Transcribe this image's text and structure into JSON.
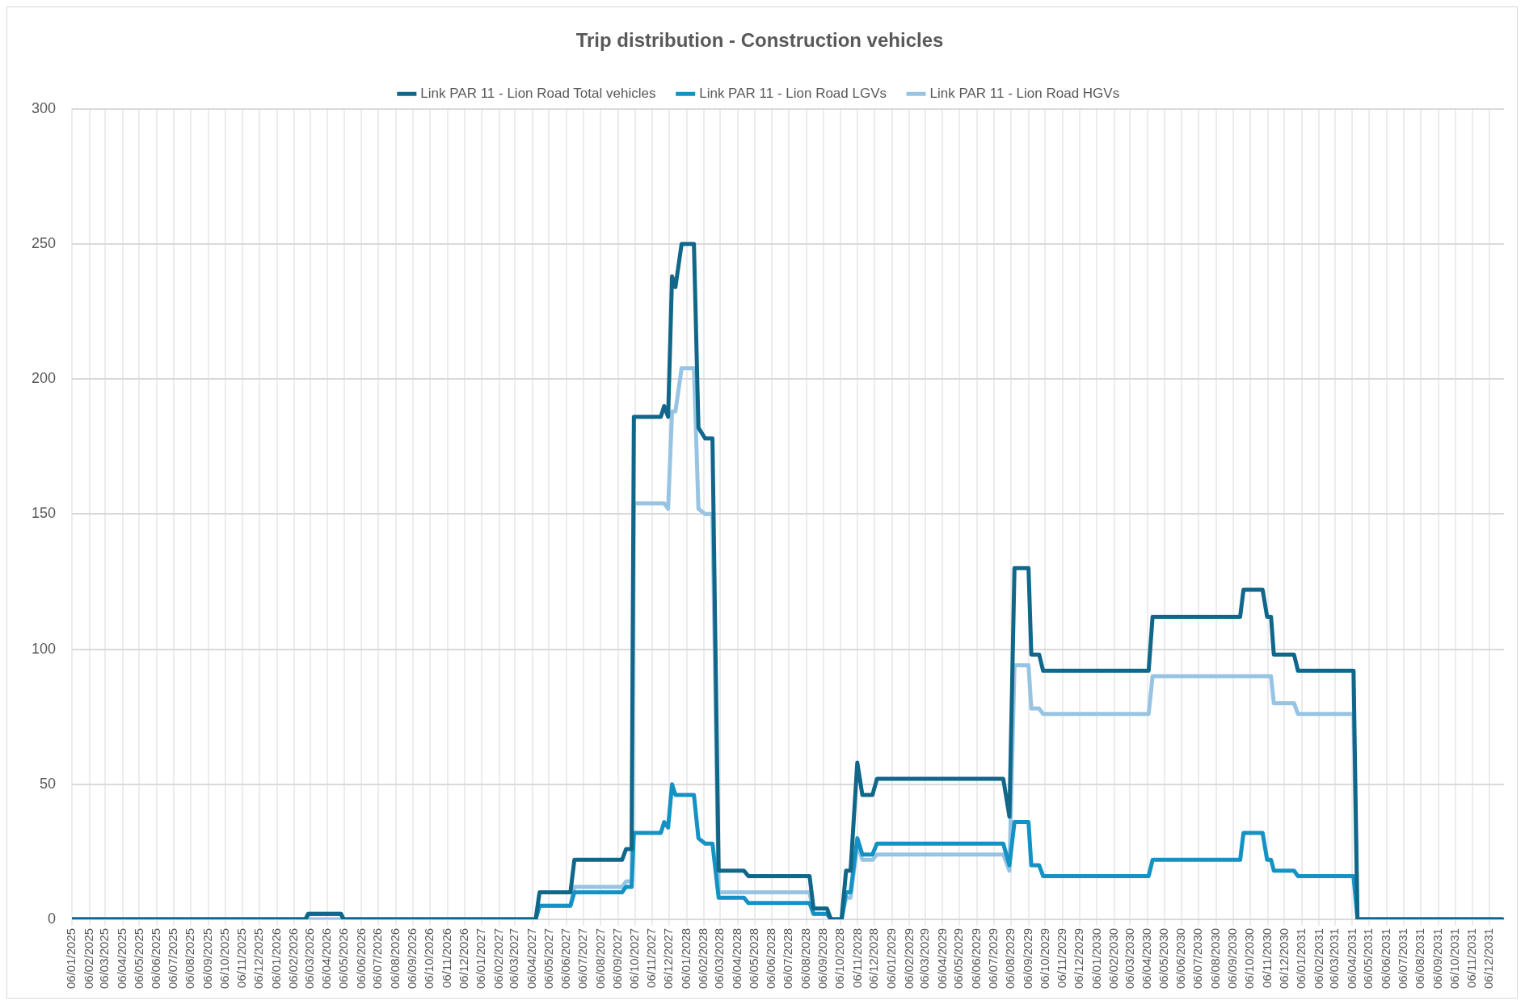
{
  "chart_data": {
    "type": "line",
    "title": "Trip distribution - Construction vehicles",
    "x": [
      "2025-01-06",
      "2026-02-26",
      "2026-03-03",
      "2026-04-30",
      "2026-05-05",
      "2027-04-12",
      "2027-04-19",
      "2027-06-13",
      "2027-06-20",
      "2027-09-13",
      "2027-09-20",
      "2027-09-30",
      "2027-10-04",
      "2027-11-21",
      "2027-11-27",
      "2027-12-04",
      "2027-12-11",
      "2027-12-17",
      "2027-12-28",
      "2028-01-19",
      "2028-01-27",
      "2028-02-08",
      "2028-02-21",
      "2028-03-03",
      "2028-04-17",
      "2028-04-25",
      "2028-08-12",
      "2028-08-19",
      "2028-09-12",
      "2028-09-19",
      "2028-10-08",
      "2028-10-16",
      "2028-10-24",
      "2028-11-05",
      "2028-11-14",
      "2028-12-02",
      "2028-12-10",
      "2029-07-23",
      "2029-08-03",
      "2029-08-12",
      "2029-09-06",
      "2029-09-11",
      "2029-09-25",
      "2029-10-02",
      "2030-04-08",
      "2030-04-15",
      "2030-09-18",
      "2030-09-24",
      "2030-10-28",
      "2030-11-05",
      "2030-11-12",
      "2030-11-17",
      "2030-12-23",
      "2030-12-30",
      "2031-04-08",
      "2031-04-15",
      "2031-12-29"
    ],
    "series": [
      {
        "name": "Link PAR 11 - Lion Road Total vehicles",
        "color": "#10678a",
        "values": [
          0,
          0,
          2,
          2,
          0,
          0,
          10,
          10,
          22,
          22,
          26,
          26,
          186,
          186,
          190,
          186,
          238,
          234,
          250,
          250,
          182,
          178,
          178,
          18,
          18,
          16,
          16,
          4,
          4,
          0,
          0,
          18,
          18,
          58,
          46,
          46,
          52,
          52,
          38,
          130,
          130,
          98,
          98,
          92,
          92,
          112,
          112,
          122,
          122,
          112,
          112,
          98,
          98,
          92,
          92,
          0,
          0
        ]
      },
      {
        "name": "Link PAR 11 - Lion Road LGVs",
        "color": "#1592c4",
        "values": [
          0,
          0,
          2,
          2,
          0,
          0,
          5,
          5,
          10,
          10,
          12,
          12,
          32,
          32,
          36,
          34,
          50,
          46,
          46,
          46,
          30,
          28,
          28,
          8,
          8,
          6,
          6,
          2,
          2,
          0,
          0,
          10,
          10,
          30,
          24,
          24,
          28,
          28,
          20,
          36,
          36,
          20,
          20,
          16,
          16,
          22,
          22,
          32,
          32,
          22,
          22,
          18,
          18,
          16,
          16,
          0,
          0
        ]
      },
      {
        "name": "Link PAR 11 - Lion Road HGVs",
        "color": "#98c4e4",
        "values": [
          0,
          0,
          0,
          0,
          0,
          0,
          5,
          5,
          12,
          12,
          14,
          14,
          154,
          154,
          154,
          152,
          188,
          188,
          204,
          204,
          152,
          150,
          150,
          10,
          10,
          10,
          10,
          2,
          2,
          0,
          0,
          8,
          8,
          28,
          22,
          22,
          24,
          24,
          18,
          94,
          94,
          78,
          78,
          76,
          76,
          90,
          90,
          90,
          90,
          90,
          90,
          80,
          80,
          76,
          76,
          0,
          0
        ]
      }
    ],
    "xlim": [
      "2025-01-06",
      "2032-01-01"
    ],
    "xticks": [
      {
        "value": "2025-01-06",
        "label": "06/01/2025"
      },
      {
        "value": "2025-02-06",
        "label": "06/02/2025"
      },
      {
        "value": "2025-03-06",
        "label": "06/03/2025"
      },
      {
        "value": "2025-04-06",
        "label": "06/04/2025"
      },
      {
        "value": "2025-05-06",
        "label": "06/05/2025"
      },
      {
        "value": "2025-06-06",
        "label": "06/06/2025"
      },
      {
        "value": "2025-07-06",
        "label": "06/07/2025"
      },
      {
        "value": "2025-08-06",
        "label": "06/08/2025"
      },
      {
        "value": "2025-09-06",
        "label": "06/09/2025"
      },
      {
        "value": "2025-10-06",
        "label": "06/10/2025"
      },
      {
        "value": "2025-11-06",
        "label": "06/11/2025"
      },
      {
        "value": "2025-12-06",
        "label": "06/12/2025"
      },
      {
        "value": "2026-01-06",
        "label": "06/01/2026"
      },
      {
        "value": "2026-02-06",
        "label": "06/02/2026"
      },
      {
        "value": "2026-03-06",
        "label": "06/03/2026"
      },
      {
        "value": "2026-04-06",
        "label": "06/04/2026"
      },
      {
        "value": "2026-05-06",
        "label": "06/05/2026"
      },
      {
        "value": "2026-06-06",
        "label": "06/06/2026"
      },
      {
        "value": "2026-07-06",
        "label": "06/07/2026"
      },
      {
        "value": "2026-08-06",
        "label": "06/08/2026"
      },
      {
        "value": "2026-09-06",
        "label": "06/09/2026"
      },
      {
        "value": "2026-10-06",
        "label": "06/10/2026"
      },
      {
        "value": "2026-11-06",
        "label": "06/11/2026"
      },
      {
        "value": "2026-12-06",
        "label": "06/12/2026"
      },
      {
        "value": "2027-01-06",
        "label": "06/01/2027"
      },
      {
        "value": "2027-02-06",
        "label": "06/02/2027"
      },
      {
        "value": "2027-03-06",
        "label": "06/03/2027"
      },
      {
        "value": "2027-04-06",
        "label": "06/04/2027"
      },
      {
        "value": "2027-05-06",
        "label": "06/05/2027"
      },
      {
        "value": "2027-06-06",
        "label": "06/06/2027"
      },
      {
        "value": "2027-07-06",
        "label": "06/07/2027"
      },
      {
        "value": "2027-08-06",
        "label": "06/08/2027"
      },
      {
        "value": "2027-09-06",
        "label": "06/09/2027"
      },
      {
        "value": "2027-10-06",
        "label": "06/10/2027"
      },
      {
        "value": "2027-11-06",
        "label": "06/11/2027"
      },
      {
        "value": "2027-12-06",
        "label": "06/12/2027"
      },
      {
        "value": "2028-01-06",
        "label": "06/01/2028"
      },
      {
        "value": "2028-02-06",
        "label": "06/02/2028"
      },
      {
        "value": "2028-03-06",
        "label": "06/03/2028"
      },
      {
        "value": "2028-04-06",
        "label": "06/04/2028"
      },
      {
        "value": "2028-05-06",
        "label": "06/05/2028"
      },
      {
        "value": "2028-06-06",
        "label": "06/06/2028"
      },
      {
        "value": "2028-07-06",
        "label": "06/07/2028"
      },
      {
        "value": "2028-08-06",
        "label": "06/08/2028"
      },
      {
        "value": "2028-09-06",
        "label": "06/09/2028"
      },
      {
        "value": "2028-10-06",
        "label": "06/10/2028"
      },
      {
        "value": "2028-11-06",
        "label": "06/11/2028"
      },
      {
        "value": "2028-12-06",
        "label": "06/12/2028"
      },
      {
        "value": "2029-01-06",
        "label": "06/01/2029"
      },
      {
        "value": "2029-02-06",
        "label": "06/02/2029"
      },
      {
        "value": "2029-03-06",
        "label": "06/03/2029"
      },
      {
        "value": "2029-04-06",
        "label": "06/04/2029"
      },
      {
        "value": "2029-05-06",
        "label": "06/05/2029"
      },
      {
        "value": "2029-06-06",
        "label": "06/06/2029"
      },
      {
        "value": "2029-07-06",
        "label": "06/07/2029"
      },
      {
        "value": "2029-08-06",
        "label": "06/08/2029"
      },
      {
        "value": "2029-09-06",
        "label": "06/09/2029"
      },
      {
        "value": "2029-10-06",
        "label": "06/10/2029"
      },
      {
        "value": "2029-11-06",
        "label": "06/11/2029"
      },
      {
        "value": "2029-12-06",
        "label": "06/12/2029"
      },
      {
        "value": "2030-01-06",
        "label": "06/01/2030"
      },
      {
        "value": "2030-02-06",
        "label": "06/02/2030"
      },
      {
        "value": "2030-03-06",
        "label": "06/03/2030"
      },
      {
        "value": "2030-04-06",
        "label": "06/04/2030"
      },
      {
        "value": "2030-05-06",
        "label": "06/05/2030"
      },
      {
        "value": "2030-06-06",
        "label": "06/06/2030"
      },
      {
        "value": "2030-07-06",
        "label": "06/07/2030"
      },
      {
        "value": "2030-08-06",
        "label": "06/08/2030"
      },
      {
        "value": "2030-09-06",
        "label": "06/09/2030"
      },
      {
        "value": "2030-10-06",
        "label": "06/10/2030"
      },
      {
        "value": "2030-11-06",
        "label": "06/11/2030"
      },
      {
        "value": "2030-12-06",
        "label": "06/12/2030"
      },
      {
        "value": "2031-01-06",
        "label": "06/01/2031"
      },
      {
        "value": "2031-02-06",
        "label": "06/02/2031"
      },
      {
        "value": "2031-03-06",
        "label": "06/03/2031"
      },
      {
        "value": "2031-04-06",
        "label": "06/04/2031"
      },
      {
        "value": "2031-05-06",
        "label": "06/05/2031"
      },
      {
        "value": "2031-06-06",
        "label": "06/06/2031"
      },
      {
        "value": "2031-07-06",
        "label": "06/07/2031"
      },
      {
        "value": "2031-08-06",
        "label": "06/08/2031"
      },
      {
        "value": "2031-09-06",
        "label": "06/09/2031"
      },
      {
        "value": "2031-10-06",
        "label": "06/10/2031"
      },
      {
        "value": "2031-11-06",
        "label": "06/11/2031"
      },
      {
        "value": "2031-12-06",
        "label": "06/12/2031"
      }
    ],
    "ylim": [
      0,
      300
    ],
    "yticks": [
      0,
      50,
      100,
      150,
      200,
      250,
      300
    ],
    "grid": true,
    "legend": "top",
    "marker": "none",
    "line_style": "solid"
  }
}
